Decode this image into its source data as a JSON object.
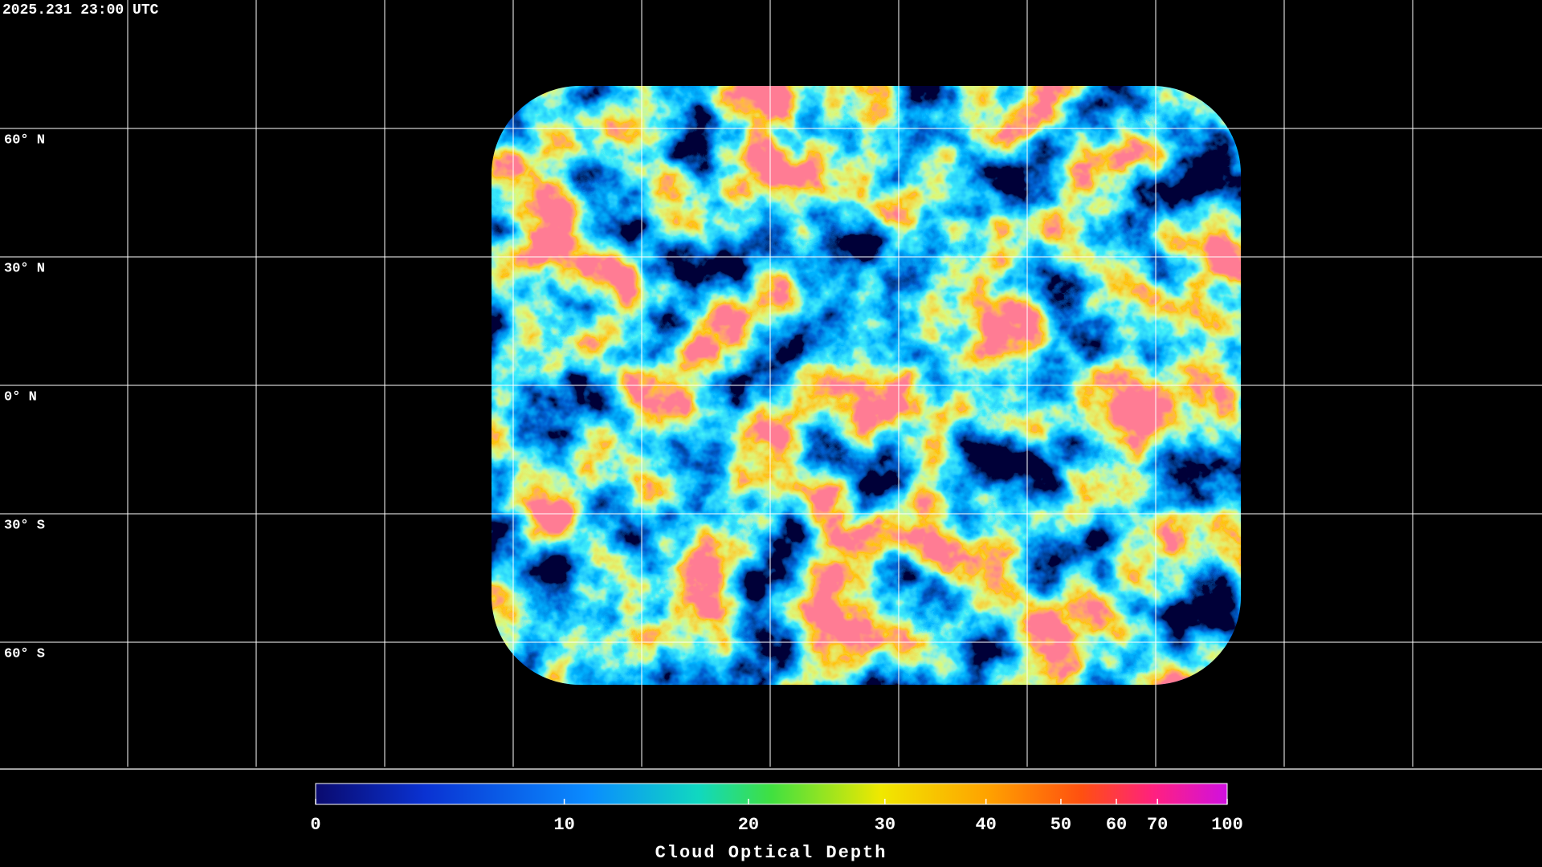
{
  "header": {
    "timestamp": "2025.231 23:00 UTC"
  },
  "map": {
    "latitude_labels": [
      "60° N",
      "30° N",
      "0° N",
      "30° S",
      "60° S"
    ]
  },
  "colorbar": {
    "title": "Cloud Optical Depth",
    "lim": [
      0,
      100
    ],
    "ticks": [
      0,
      10,
      20,
      30,
      40,
      50,
      60,
      70,
      100
    ]
  }
}
